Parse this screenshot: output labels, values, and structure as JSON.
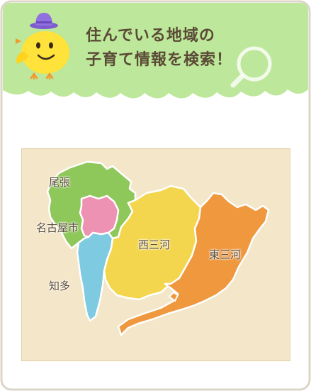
{
  "header": {
    "title_line1": "住んでいる地域の",
    "title_line2": "子育て情報を検索！"
  },
  "map": {
    "regions": [
      {
        "id": "owari",
        "label": "尾張",
        "color": "#8fc85a"
      },
      {
        "id": "nagoya",
        "label": "名古屋市",
        "color": "#ee92b4"
      },
      {
        "id": "chita",
        "label": "知多",
        "color": "#7ecae0"
      },
      {
        "id": "nishimikawa",
        "label": "西三河",
        "color": "#f4d64e"
      },
      {
        "id": "higashimikawa",
        "label": "東三河",
        "color": "#f0983e"
      }
    ]
  },
  "icons": [
    "chick-mascot-icon",
    "magnifier-icon"
  ],
  "colors": {
    "cloud": "#bde79a",
    "frame_border": "#ddd6c8",
    "text": "#5a4a36",
    "map_background": "#f4e6c8"
  }
}
